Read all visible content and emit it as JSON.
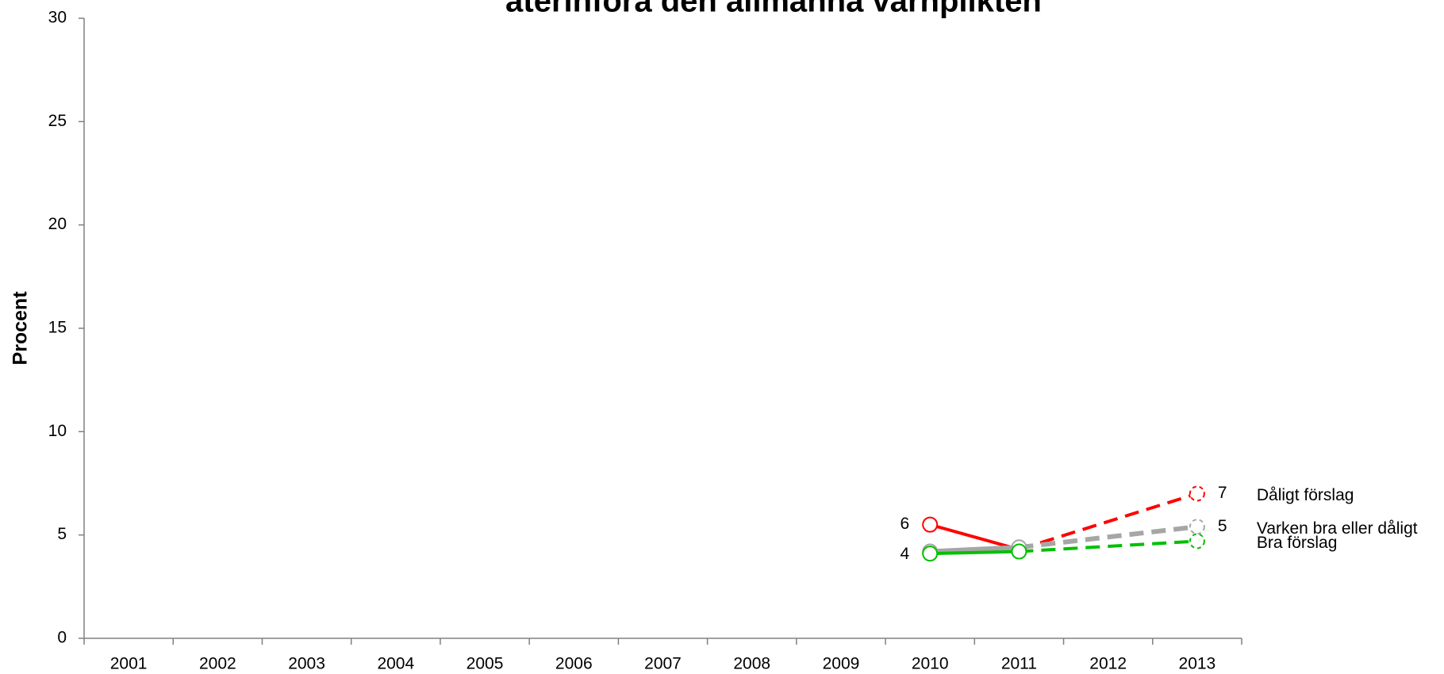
{
  "chart_data": {
    "type": "line",
    "title": "återinföra den allmänna värnplikten",
    "y_label": "Procent",
    "categories": [
      "2001",
      "2002",
      "2003",
      "2004",
      "2005",
      "2006",
      "2007",
      "2008",
      "2009",
      "2010",
      "2011",
      "2012",
      "2013"
    ],
    "dashed_from": "2011",
    "ylim": [
      0,
      30
    ],
    "yticks": [
      0,
      5,
      10,
      15,
      20,
      25,
      30
    ],
    "grid": false,
    "series": [
      {
        "name": "Dåligt förslag",
        "color": "#ff0000",
        "values": [
          null,
          null,
          null,
          null,
          null,
          null,
          null,
          null,
          null,
          5.5,
          4.3,
          null,
          7.0
        ],
        "value_labels": [
          null,
          null,
          null,
          null,
          null,
          null,
          null,
          null,
          null,
          "6",
          null,
          null,
          "7"
        ]
      },
      {
        "name": "Varken bra eller dåligt",
        "color": "#a6a6a6",
        "values": [
          null,
          null,
          null,
          null,
          null,
          null,
          null,
          null,
          null,
          4.2,
          4.4,
          null,
          5.4
        ],
        "value_labels": [
          null,
          null,
          null,
          null,
          null,
          null,
          null,
          null,
          null,
          "4",
          null,
          null,
          "5"
        ]
      },
      {
        "name": "Bra förslag",
        "color": "#00c000",
        "values": [
          null,
          null,
          null,
          null,
          null,
          null,
          null,
          null,
          null,
          4.1,
          4.2,
          null,
          4.7
        ]
      }
    ]
  }
}
